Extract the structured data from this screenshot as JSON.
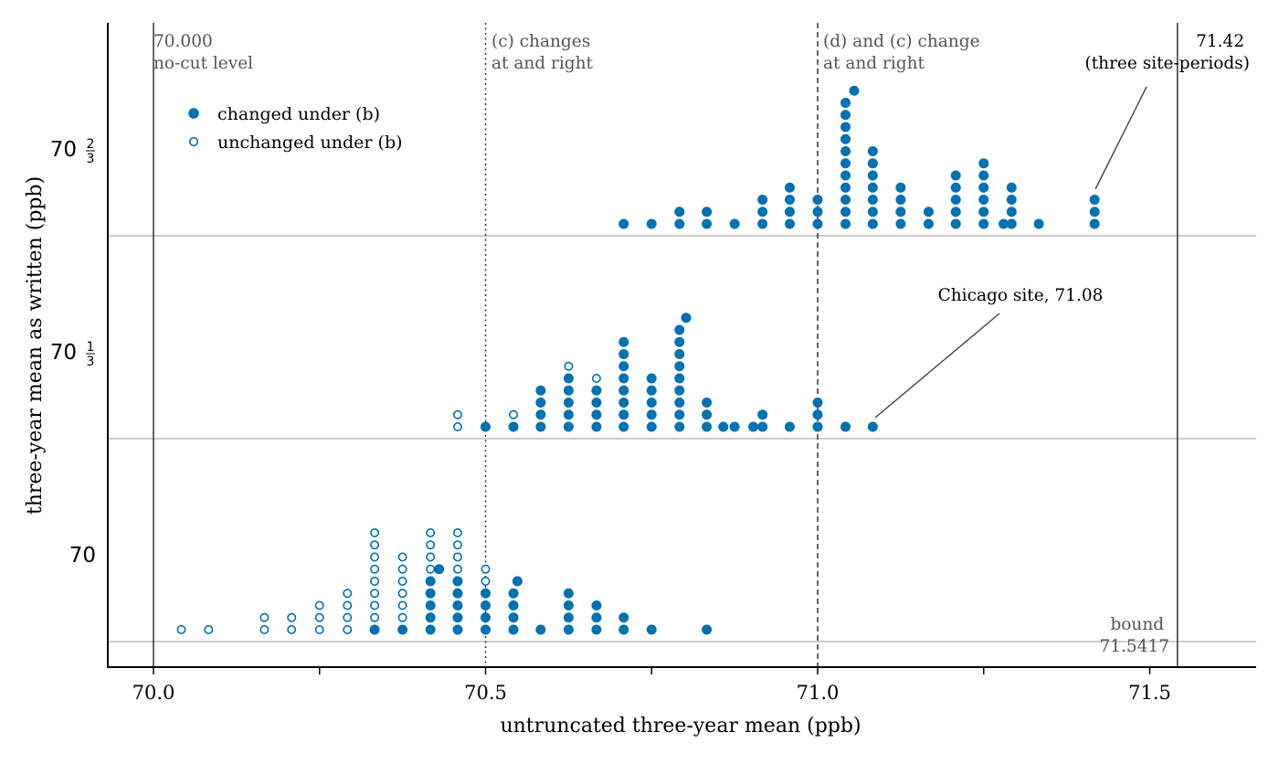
{
  "chart_data": {
    "type": "scatter",
    "xlabel": "untruncated three-year mean (ppb)",
    "ylabel": "three-year mean as written (ppb)",
    "xlim": [
      69.93,
      71.65
    ],
    "x_ticks": [
      {
        "value": 70.0,
        "label": "70.0"
      },
      {
        "value": 70.5,
        "label": "70.5"
      },
      {
        "value": 71.0,
        "label": "71.0"
      },
      {
        "value": 71.5,
        "label": "71.5"
      }
    ],
    "x_minor_ticks": [
      70.25,
      70.75,
      71.25
    ],
    "y_levels": [
      {
        "key": "70",
        "label": "70",
        "sup": "",
        "sub": ""
      },
      {
        "key": "70 1/3",
        "label": "70",
        "sup": "1",
        "sub": "3"
      },
      {
        "key": "70 2/3",
        "label": "70",
        "sup": "2",
        "sub": "3"
      }
    ],
    "legend": {
      "placement": "upper-left",
      "entries": [
        {
          "label": "changed under (b)",
          "marker": "filled"
        },
        {
          "label": "unchanged under (b)",
          "marker": "open"
        }
      ]
    },
    "reference_lines": [
      {
        "x": 70.0,
        "style": "solid",
        "text": [
          "70.000",
          "no-cut level"
        ]
      },
      {
        "x": 70.5,
        "style": "dotted",
        "text": [
          "(c) changes",
          "at and right"
        ]
      },
      {
        "x": 71.0,
        "style": "dashed",
        "text": [
          "(d) and (c) change",
          "at and right"
        ]
      },
      {
        "x": 71.5417,
        "style": "solid",
        "text": [
          "bound",
          "71.5417"
        ]
      }
    ],
    "annotations": [
      {
        "text": [
          "71.42",
          "(three site-periods)"
        ],
        "target_x": 71.42,
        "level": "70 2/3"
      },
      {
        "text": [
          "Chicago site, 71.08"
        ],
        "target_x": 71.08,
        "level": "70 1/3"
      }
    ],
    "series": [
      {
        "level": "70",
        "columns": [
          {
            "x": 70.042,
            "filled": 0,
            "open": 1
          },
          {
            "x": 70.083,
            "filled": 0,
            "open": 1
          },
          {
            "x": 70.167,
            "filled": 0,
            "open": 2
          },
          {
            "x": 70.208,
            "filled": 0,
            "open": 2
          },
          {
            "x": 70.25,
            "filled": 0,
            "open": 3
          },
          {
            "x": 70.292,
            "filled": 0,
            "open": 4
          },
          {
            "x": 70.333,
            "filled": 1,
            "open": 8
          },
          {
            "x": 70.375,
            "filled": 1,
            "open": 6
          },
          {
            "x": 70.417,
            "filled": 5,
            "open": 4
          },
          {
            "x": 70.43,
            "filled": 1,
            "open": 0,
            "stack_from": 5
          },
          {
            "x": 70.458,
            "filled": 5,
            "open": 4
          },
          {
            "x": 70.5,
            "filled": 4,
            "open": 2
          },
          {
            "x": 70.542,
            "filled": 4,
            "open": 0
          },
          {
            "x": 70.548,
            "filled": 1,
            "open": 0,
            "stack_from": 4
          },
          {
            "x": 70.583,
            "filled": 1,
            "open": 0
          },
          {
            "x": 70.625,
            "filled": 4,
            "open": 0
          },
          {
            "x": 70.667,
            "filled": 3,
            "open": 0
          },
          {
            "x": 70.708,
            "filled": 2,
            "open": 0
          },
          {
            "x": 70.75,
            "filled": 1,
            "open": 0
          },
          {
            "x": 70.833,
            "filled": 1,
            "open": 0
          }
        ]
      },
      {
        "level": "70 1/3",
        "columns": [
          {
            "x": 70.458,
            "filled": 0,
            "open": 2
          },
          {
            "x": 70.5,
            "filled": 1,
            "open": 0
          },
          {
            "x": 70.542,
            "filled": 1,
            "open": 1
          },
          {
            "x": 70.583,
            "filled": 4,
            "open": 0
          },
          {
            "x": 70.625,
            "filled": 5,
            "open": 1
          },
          {
            "x": 70.667,
            "filled": 4,
            "open": 1
          },
          {
            "x": 70.708,
            "filled": 8,
            "open": 0
          },
          {
            "x": 70.75,
            "filled": 5,
            "open": 0
          },
          {
            "x": 70.792,
            "filled": 9,
            "open": 0
          },
          {
            "x": 70.802,
            "filled": 1,
            "open": 0,
            "stack_from": 9
          },
          {
            "x": 70.833,
            "filled": 3,
            "open": 0
          },
          {
            "x": 70.858,
            "filled": 1,
            "open": 0
          },
          {
            "x": 70.875,
            "filled": 1,
            "open": 0
          },
          {
            "x": 70.903,
            "filled": 1,
            "open": 0
          },
          {
            "x": 70.917,
            "filled": 2,
            "open": 0
          },
          {
            "x": 70.958,
            "filled": 1,
            "open": 0
          },
          {
            "x": 71.0,
            "filled": 3,
            "open": 0
          },
          {
            "x": 71.042,
            "filled": 1,
            "open": 0
          },
          {
            "x": 71.083,
            "filled": 1,
            "open": 0
          }
        ]
      },
      {
        "level": "70 2/3",
        "columns": [
          {
            "x": 70.708,
            "filled": 1,
            "open": 0
          },
          {
            "x": 70.75,
            "filled": 1,
            "open": 0
          },
          {
            "x": 70.792,
            "filled": 2,
            "open": 0
          },
          {
            "x": 70.833,
            "filled": 2,
            "open": 0
          },
          {
            "x": 70.875,
            "filled": 1,
            "open": 0
          },
          {
            "x": 70.917,
            "filled": 3,
            "open": 0
          },
          {
            "x": 70.958,
            "filled": 4,
            "open": 0
          },
          {
            "x": 71.0,
            "filled": 3,
            "open": 0
          },
          {
            "x": 71.042,
            "filled": 11,
            "open": 0
          },
          {
            "x": 71.055,
            "filled": 1,
            "open": 0,
            "stack_from": 11
          },
          {
            "x": 71.083,
            "filled": 7,
            "open": 0
          },
          {
            "x": 71.125,
            "filled": 4,
            "open": 0
          },
          {
            "x": 71.167,
            "filled": 2,
            "open": 0
          },
          {
            "x": 71.208,
            "filled": 5,
            "open": 0
          },
          {
            "x": 71.25,
            "filled": 6,
            "open": 0
          },
          {
            "x": 71.28,
            "filled": 1,
            "open": 0
          },
          {
            "x": 71.292,
            "filled": 4,
            "open": 0
          },
          {
            "x": 71.333,
            "filled": 1,
            "open": 0
          },
          {
            "x": 71.417,
            "filled": 3,
            "open": 0
          }
        ]
      }
    ],
    "colors": {
      "marker": "#0072b2",
      "reference": "#333333",
      "band": "#b0b0b0"
    },
    "grid": false
  }
}
